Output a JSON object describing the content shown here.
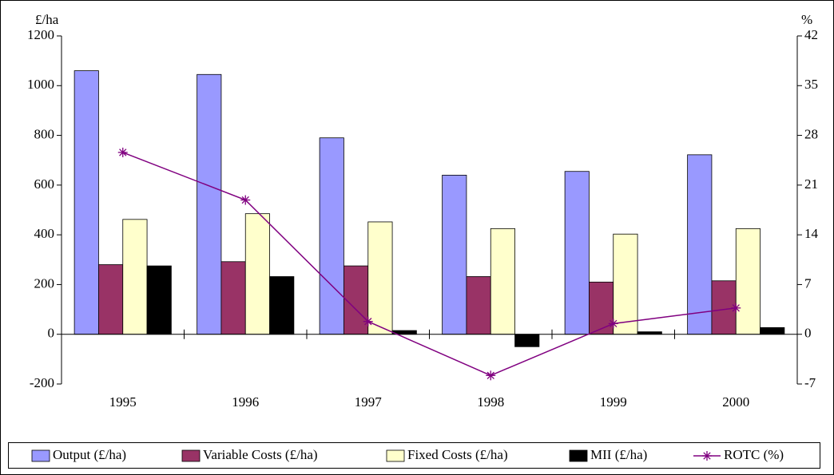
{
  "chart_data": {
    "type": "bar",
    "ylabel": "£/ha",
    "y2label": "%",
    "categories": [
      "1995",
      "1996",
      "1997",
      "1998",
      "1999",
      "2000"
    ],
    "series": [
      {
        "name": "Output (£/ha)",
        "color": "#9999ff",
        "values": [
          1060,
          1045,
          790,
          640,
          655,
          722
        ]
      },
      {
        "name": "Variable Costs (£/ha)",
        "color": "#993366",
        "values": [
          280,
          292,
          275,
          232,
          210,
          215
        ]
      },
      {
        "name": "Fixed Costs (£/ha)",
        "color": "#ffffcc",
        "values": [
          462,
          485,
          452,
          425,
          403,
          425
        ]
      },
      {
        "name": "MII (£/ha)",
        "color": "#000000",
        "values": [
          275,
          232,
          15,
          -50,
          10,
          27
        ]
      },
      {
        "name": "ROTC (%)",
        "color": "#800080",
        "type": "line",
        "axis": "y2",
        "values": [
          25.6,
          18.9,
          1.8,
          -5.8,
          1.5,
          3.7
        ]
      }
    ],
    "ylim": [
      -200,
      1200
    ],
    "yticks": [
      -200,
      0,
      200,
      400,
      600,
      800,
      1000,
      1200
    ],
    "y2lim": [
      -7,
      42
    ],
    "y2ticks": [
      -7,
      0,
      7,
      14,
      21,
      28,
      35,
      42
    ],
    "legend": "bottom"
  }
}
